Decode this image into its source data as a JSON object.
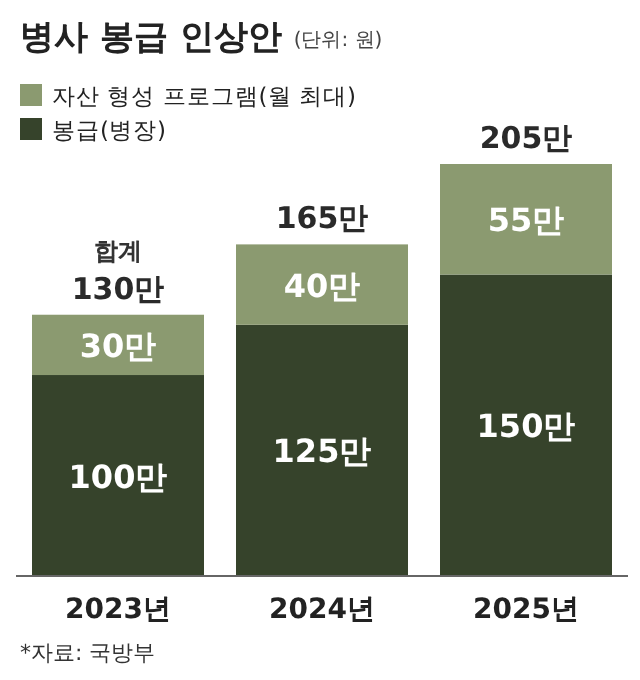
{
  "chart_data": {
    "type": "bar",
    "title": "병사 봉급 인상안",
    "subtitle": "(단위: 원)",
    "categories": [
      "2023년",
      "2024년",
      "2025년"
    ],
    "stacked": true,
    "legend": "top left",
    "series": [
      {
        "name": "봉급(병장)",
        "color": "#36432b",
        "values": [
          100,
          125,
          150
        ],
        "value_labels": [
          "100만",
          "125만",
          "150만"
        ]
      },
      {
        "name": "자산 형성 프로그램(월 최대)",
        "color": "#8b9a70",
        "values": [
          30,
          40,
          55
        ],
        "value_labels": [
          "30만",
          "40만",
          "55만"
        ]
      }
    ],
    "totals": [
      "130만",
      "165만",
      "205만"
    ],
    "annotations": [
      {
        "text": "합계",
        "x": "2023년",
        "y": 130
      },
      "*자료: 국방부"
    ]
  }
}
